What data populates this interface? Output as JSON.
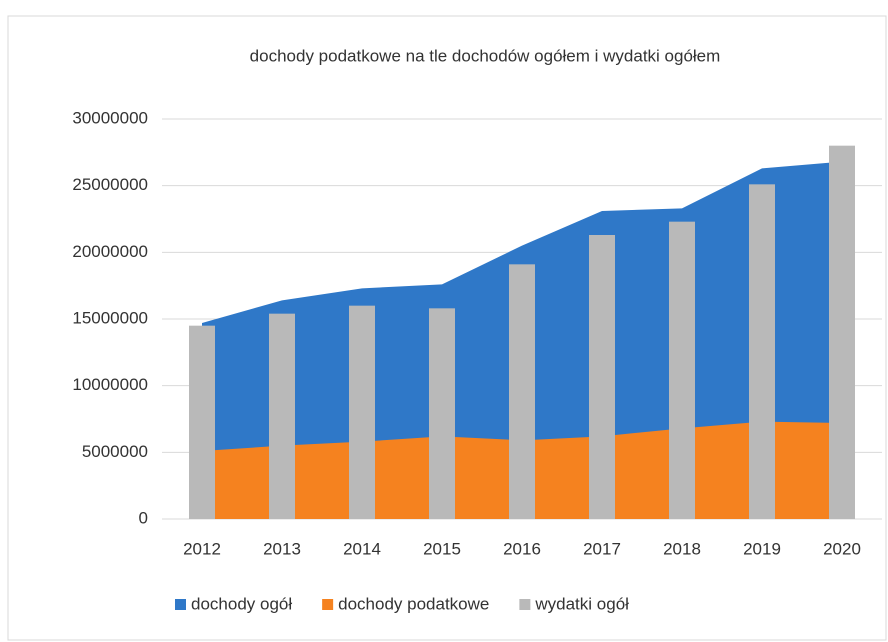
{
  "chart_data": {
    "type": "combo",
    "title": "dochody podatkowe na tle dochodów ogółem  i wydatki ogółem",
    "categories": [
      "2012",
      "2013",
      "2014",
      "2015",
      "2016",
      "2017",
      "2018",
      "2019",
      "2020"
    ],
    "series": [
      {
        "name": "dochody ogół",
        "type": "area",
        "color": "#2f78c8",
        "values": [
          14700000,
          16400000,
          17300000,
          17600000,
          20500000,
          23100000,
          23300000,
          26300000,
          26800000
        ]
      },
      {
        "name": "dochody podatkowe",
        "type": "area",
        "color": "#f5821f",
        "values": [
          5100000,
          5500000,
          5800000,
          6200000,
          5900000,
          6200000,
          6800000,
          7300000,
          7200000
        ]
      },
      {
        "name": "wydatki ogół",
        "type": "bar",
        "color": "#b9b9b9",
        "values": [
          14500000,
          15400000,
          16000000,
          15800000,
          19100000,
          21300000,
          22300000,
          25100000,
          28000000
        ]
      }
    ],
    "ylim": [
      0,
      30000000
    ],
    "yticks": [
      0,
      5000000,
      10000000,
      15000000,
      20000000,
      25000000,
      30000000
    ],
    "grid": true,
    "legend": "bottom"
  }
}
